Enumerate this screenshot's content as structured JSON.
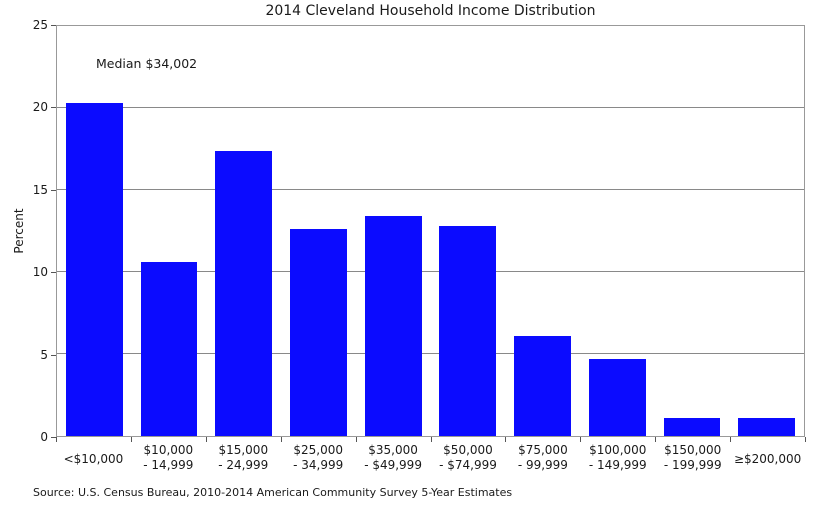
{
  "chart_data": {
    "type": "bar",
    "title": "2014 Cleveland Household Income Distribution",
    "ylabel": "Percent",
    "xlabel": "",
    "annotation": "Median $34,002",
    "source": "Source: U.S. Census Bureau, 2010-2014 American Community Survey 5-Year Estimates",
    "categories": [
      [
        "<$10,000"
      ],
      [
        "$10,000",
        "- 14,999"
      ],
      [
        "$15,000",
        "- 24,999"
      ],
      [
        "$25,000",
        "- 34,999"
      ],
      [
        "$35,000",
        "- $49,999"
      ],
      [
        "$50,000",
        "- $74,999"
      ],
      [
        "$75,000",
        "- 99,999"
      ],
      [
        "$100,000",
        "- 149,999"
      ],
      [
        "$150,000",
        "- 199,999"
      ],
      [
        "≥$200,000"
      ]
    ],
    "values": [
      20.3,
      10.6,
      17.4,
      12.6,
      13.4,
      12.8,
      6.1,
      4.7,
      1.1,
      1.1
    ],
    "ylim": [
      0,
      25
    ],
    "yticks": [
      0,
      5,
      10,
      15,
      20,
      25
    ],
    "grid": true,
    "legend": "none",
    "bar_color": "#0b0bff",
    "grid_color": "#898989",
    "frame_color": "#999999"
  }
}
